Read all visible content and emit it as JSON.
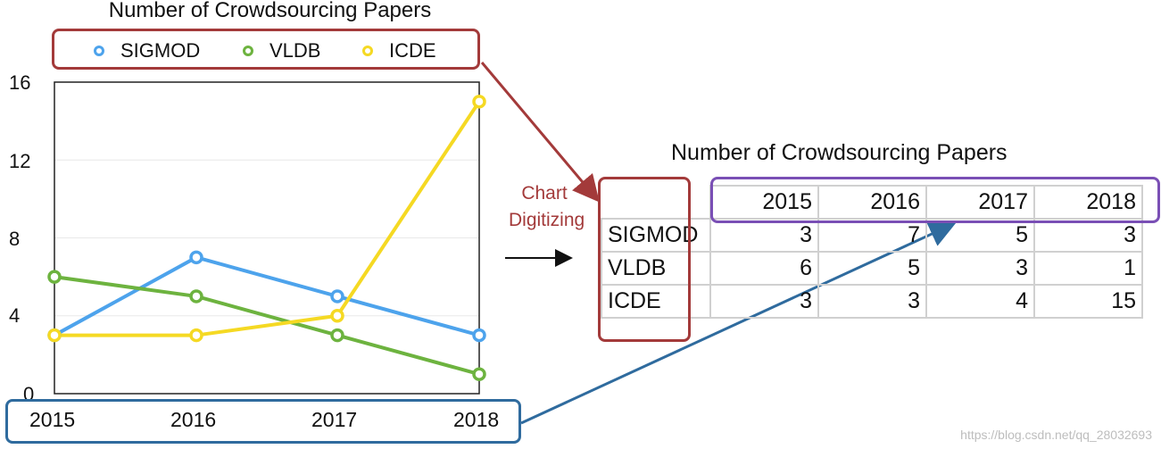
{
  "chart": {
    "title": "Number of Crowdsourcing Papers",
    "legend": [
      {
        "name": "SIGMOD",
        "color": "#4da3ec"
      },
      {
        "name": "VLDB",
        "color": "#6db33f"
      },
      {
        "name": "ICDE",
        "color": "#f5d923"
      }
    ],
    "yticks": [
      "16",
      "12",
      "8",
      "4",
      "0"
    ],
    "xticks": [
      "2015",
      "2016",
      "2017",
      "2018"
    ]
  },
  "chart_data": {
    "type": "line",
    "title": "Number of Crowdsourcing Papers",
    "categories": [
      "2015",
      "2016",
      "2017",
      "2018"
    ],
    "series": [
      {
        "name": "SIGMOD",
        "values": [
          3,
          7,
          5,
          3
        ],
        "color": "#4da3ec"
      },
      {
        "name": "VLDB",
        "values": [
          6,
          5,
          3,
          1
        ],
        "color": "#6db33f"
      },
      {
        "name": "ICDE",
        "values": [
          3,
          3,
          4,
          15
        ],
        "color": "#f5d923"
      }
    ],
    "ylim": [
      0,
      16
    ],
    "xlabel": "",
    "ylabel": "",
    "grid": true,
    "legend_position": "top"
  },
  "annotation": {
    "line1": "Chart",
    "line2": "Digitizing"
  },
  "table": {
    "title": "Number of Crowdsourcing Papers",
    "columns": [
      "2015",
      "2016",
      "2017",
      "2018"
    ],
    "rows": [
      {
        "label": "SIGMOD",
        "values": [
          "3",
          "7",
          "5",
          "3"
        ]
      },
      {
        "label": "VLDB",
        "values": [
          "6",
          "5",
          "3",
          "1"
        ]
      },
      {
        "label": "ICDE",
        "values": [
          "3",
          "3",
          "4",
          "15"
        ]
      }
    ]
  },
  "colors": {
    "red_box": "#a33a3a",
    "blue_box": "#2f6b9e",
    "purple_box": "#7a4fb5"
  },
  "watermark": "https://blog.csdn.net/qq_28032693"
}
